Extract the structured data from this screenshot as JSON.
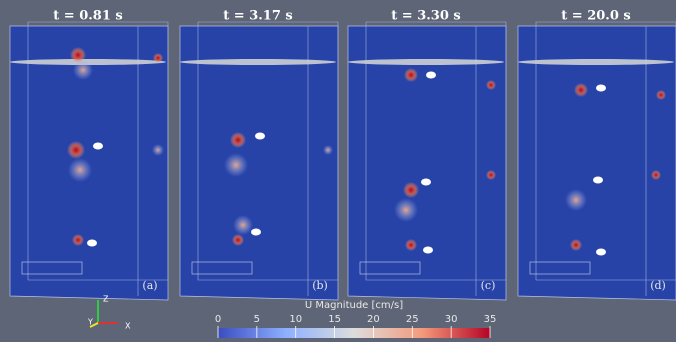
{
  "panels": [
    {
      "title": "t = 0.81 s",
      "label": "(a)"
    },
    {
      "title": "t = 3.17 s",
      "label": "(b)"
    },
    {
      "title": "t = 3.30 s",
      "label": "(c)"
    },
    {
      "title": "t = 20.0 s",
      "label": "(d)"
    }
  ],
  "colorbar": {
    "title": "U Magnitude [cm/s]",
    "range": [
      0,
      35
    ],
    "ticks": [
      0,
      5,
      10,
      15,
      20,
      25,
      30,
      35
    ]
  },
  "axes": {
    "z": "Z",
    "y": "Y",
    "x": "X"
  }
}
